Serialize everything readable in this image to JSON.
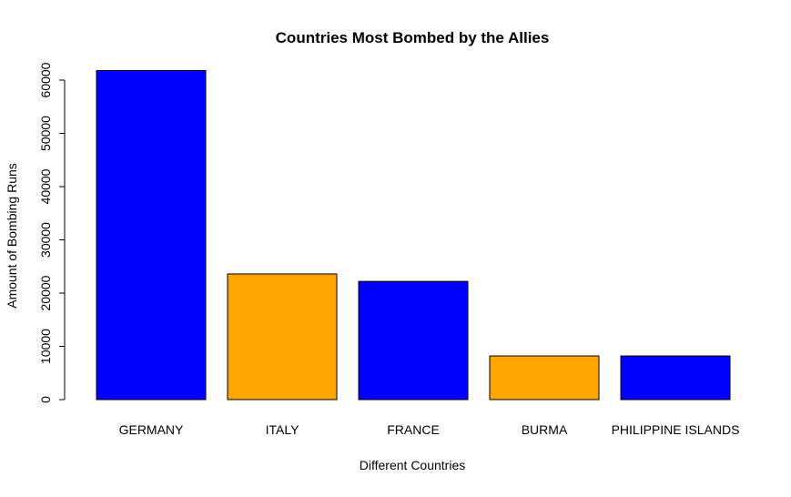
{
  "chart_data": {
    "type": "bar",
    "title": "Countries Most Bombed by the Allies",
    "xlabel": "Different Countries",
    "ylabel": "Amount of Bombing Runs",
    "categories": [
      "GERMANY",
      "ITALY",
      "FRANCE",
      "BURMA",
      "PHILIPPINE ISLANDS"
    ],
    "values": [
      61800,
      23600,
      22200,
      8200,
      8200
    ],
    "colors": [
      "#0000ff",
      "#ffa500",
      "#0000ff",
      "#ffa500",
      "#0000ff"
    ],
    "ylim": [
      0,
      60000
    ],
    "yticks": [
      0,
      10000,
      20000,
      30000,
      40000,
      50000,
      60000
    ],
    "ytick_labels": [
      "0",
      "10000",
      "20000",
      "30000",
      "40000",
      "50000",
      "60000"
    ],
    "grid": false,
    "legend": "none"
  }
}
